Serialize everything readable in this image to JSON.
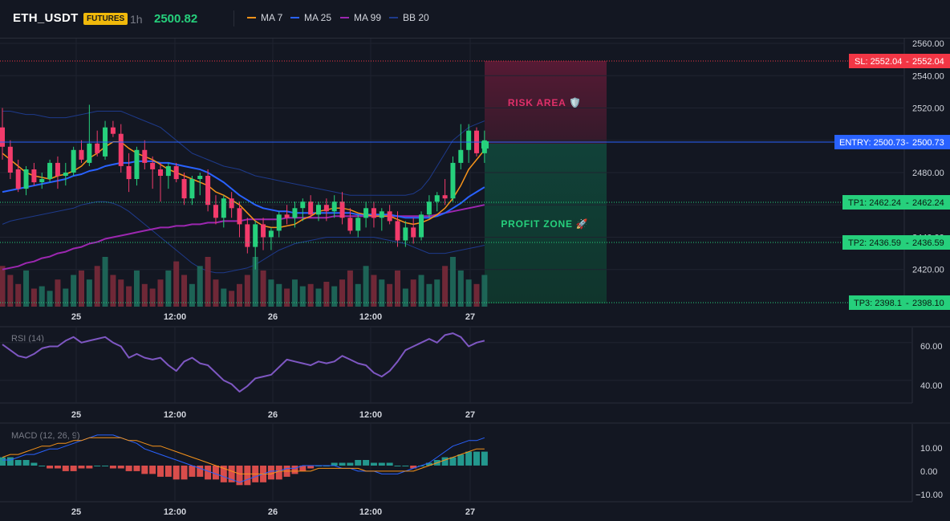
{
  "header": {
    "symbol": "ETH_USDT",
    "badge": "FUTURES",
    "timeframe": "1h",
    "price": "2500.82",
    "indicators": [
      {
        "label": "MA 7",
        "color": "#f7931a"
      },
      {
        "label": "MA 25",
        "color": "#2962ff"
      },
      {
        "label": "MA 99",
        "color": "#9c27b0"
      },
      {
        "label": "BB 20",
        "color": "#1e3a8a"
      }
    ]
  },
  "zones": {
    "risk_label": "RISK AREA 🛡️",
    "profit_label": "PROFIT ZONE 🚀"
  },
  "levels": {
    "sl": {
      "label": "SL: 2552.04",
      "value": "2552.04"
    },
    "entry": {
      "label": "ENTRY: 2500.73",
      "value": "2500.73"
    },
    "tp1": {
      "label": "TP1: 2462.24",
      "value": "2462.24"
    },
    "tp2": {
      "label": "TP2: 2436.59",
      "value": "2436.59"
    },
    "tp3": {
      "label": "TP3: 2398.1",
      "value": "2398.10"
    }
  },
  "price_axis": [
    "2560.00",
    "2540.00",
    "2520.00",
    "2500.00",
    "2480.00",
    "2440.00",
    "2420.00"
  ],
  "time_axis": [
    "25",
    "12:00",
    "26",
    "12:00",
    "27"
  ],
  "rsi": {
    "label": "RSI (14)",
    "axis": [
      "60.00",
      "40.00"
    ]
  },
  "macd": {
    "label": "MACD (12, 26, 9)",
    "axis": [
      "10.00",
      "0.00",
      "−10.00"
    ]
  },
  "chart_data": {
    "type": "candlestick",
    "symbol": "ETH_USDT",
    "interval": "1h",
    "price_ylim": [
      2397,
      2563
    ],
    "rsi_ylim": [
      28,
      68
    ],
    "macd_ylim": [
      -13,
      15
    ],
    "x_ticks": [
      "25",
      "12:00",
      "26",
      "12:00",
      "27"
    ],
    "candles": [
      [
        2508,
        2520,
        2488,
        2496
      ],
      [
        2496,
        2500,
        2476,
        2480
      ],
      [
        2482,
        2488,
        2468,
        2470
      ],
      [
        2470,
        2484,
        2466,
        2482
      ],
      [
        2482,
        2486,
        2472,
        2474
      ],
      [
        2474,
        2480,
        2470,
        2476
      ],
      [
        2476,
        2488,
        2474,
        2486
      ],
      [
        2486,
        2490,
        2470,
        2478
      ],
      [
        2478,
        2486,
        2472,
        2480
      ],
      [
        2480,
        2496,
        2478,
        2494
      ],
      [
        2494,
        2500,
        2486,
        2488
      ],
      [
        2486,
        2522,
        2484,
        2498
      ],
      [
        2498,
        2506,
        2490,
        2492
      ],
      [
        2490,
        2512,
        2488,
        2508
      ],
      [
        2508,
        2512,
        2502,
        2504
      ],
      [
        2504,
        2510,
        2480,
        2484
      ],
      [
        2484,
        2492,
        2468,
        2476
      ],
      [
        2476,
        2496,
        2472,
        2494
      ],
      [
        2494,
        2500,
        2482,
        2486
      ],
      [
        2486,
        2490,
        2470,
        2482
      ],
      [
        2482,
        2486,
        2462,
        2478
      ],
      [
        2478,
        2486,
        2470,
        2484
      ],
      [
        2484,
        2486,
        2474,
        2476
      ],
      [
        2476,
        2480,
        2460,
        2464
      ],
      [
        2464,
        2478,
        2460,
        2476
      ],
      [
        2476,
        2480,
        2466,
        2478
      ],
      [
        2478,
        2482,
        2456,
        2460
      ],
      [
        2460,
        2466,
        2448,
        2452
      ],
      [
        2452,
        2466,
        2446,
        2464
      ],
      [
        2464,
        2468,
        2452,
        2458
      ],
      [
        2458,
        2462,
        2440,
        2448
      ],
      [
        2448,
        2452,
        2430,
        2434
      ],
      [
        2434,
        2450,
        2420,
        2448
      ],
      [
        2448,
        2452,
        2432,
        2440
      ],
      [
        2440,
        2446,
        2432,
        2444
      ],
      [
        2444,
        2456,
        2440,
        2454
      ],
      [
        2454,
        2460,
        2448,
        2452
      ],
      [
        2452,
        2462,
        2446,
        2458
      ],
      [
        2458,
        2464,
        2450,
        2462
      ],
      [
        2462,
        2466,
        2452,
        2454
      ],
      [
        2454,
        2462,
        2450,
        2460
      ],
      [
        2460,
        2464,
        2450,
        2456
      ],
      [
        2456,
        2466,
        2452,
        2462
      ],
      [
        2462,
        2468,
        2448,
        2452
      ],
      [
        2452,
        2458,
        2442,
        2444
      ],
      [
        2444,
        2454,
        2440,
        2452
      ],
      [
        2452,
        2462,
        2446,
        2458
      ],
      [
        2458,
        2462,
        2446,
        2452
      ],
      [
        2452,
        2458,
        2444,
        2456
      ],
      [
        2456,
        2460,
        2448,
        2450
      ],
      [
        2450,
        2456,
        2434,
        2438
      ],
      [
        2438,
        2450,
        2434,
        2446
      ],
      [
        2446,
        2452,
        2436,
        2440
      ],
      [
        2440,
        2456,
        2438,
        2454
      ],
      [
        2454,
        2466,
        2452,
        2462
      ],
      [
        2462,
        2468,
        2456,
        2466
      ],
      [
        2466,
        2476,
        2460,
        2464
      ],
      [
        2464,
        2490,
        2462,
        2486
      ],
      [
        2486,
        2510,
        2482,
        2494
      ],
      [
        2494,
        2510,
        2486,
        2506
      ],
      [
        2506,
        2508,
        2490,
        2492
      ],
      [
        2492,
        2506,
        2486,
        2500
      ]
    ],
    "volume": [
      18,
      14,
      10,
      16,
      8,
      9,
      7,
      12,
      8,
      14,
      16,
      12,
      18,
      22,
      14,
      12,
      9,
      16,
      10,
      8,
      12,
      16,
      20,
      14,
      10,
      18,
      22,
      12,
      8,
      7,
      10,
      14,
      22,
      16,
      12,
      10,
      8,
      12,
      9,
      10,
      8,
      11,
      9,
      12,
      16,
      10,
      18,
      14,
      12,
      10,
      16,
      8,
      12,
      14,
      10,
      12,
      18,
      22,
      16,
      12,
      10,
      14
    ],
    "ma7": [
      2492,
      2488,
      2484,
      2480,
      2478,
      2477,
      2476,
      2478,
      2479,
      2481,
      2484,
      2489,
      2492,
      2496,
      2499,
      2499,
      2495,
      2492,
      2490,
      2488,
      2485,
      2482,
      2480,
      2478,
      2476,
      2474,
      2472,
      2468,
      2466,
      2463,
      2460,
      2455,
      2450,
      2447,
      2446,
      2446,
      2447,
      2448,
      2451,
      2453,
      2456,
      2457,
      2458,
      2458,
      2457,
      2455,
      2454,
      2453,
      2453,
      2453,
      2451,
      2449,
      2448,
      2449,
      2451,
      2454,
      2458,
      2464,
      2472,
      2482,
      2488,
      2494
    ],
    "ma25": [
      2468,
      2469,
      2470,
      2471,
      2472,
      2473,
      2474,
      2475,
      2476,
      2478,
      2479,
      2481,
      2482,
      2484,
      2485,
      2486,
      2486,
      2487,
      2487,
      2487,
      2486,
      2486,
      2485,
      2484,
      2483,
      2482,
      2480,
      2477,
      2474,
      2470,
      2466,
      2463,
      2460,
      2458,
      2457,
      2456,
      2456,
      2455,
      2455,
      2455,
      2455,
      2455,
      2455,
      2455,
      2455,
      2454,
      2454,
      2454,
      2454,
      2454,
      2453,
      2452,
      2452,
      2452,
      2452,
      2453,
      2455,
      2458,
      2461,
      2465,
      2468,
      2471
    ],
    "ma99": [
      2420,
      2421,
      2422,
      2424,
      2425,
      2427,
      2428,
      2430,
      2431,
      2433,
      2434,
      2436,
      2437,
      2439,
      2440,
      2441,
      2442,
      2443,
      2444,
      2445,
      2446,
      2446,
      2447,
      2447,
      2448,
      2448,
      2449,
      2449,
      2450,
      2450,
      2450,
      2451,
      2451,
      2451,
      2451,
      2451,
      2452,
      2452,
      2452,
      2452,
      2452,
      2452,
      2453,
      2453,
      2453,
      2453,
      2453,
      2453,
      2453,
      2453,
      2453,
      2453,
      2453,
      2453,
      2453,
      2454,
      2455,
      2456,
      2457,
      2458,
      2459,
      2460
    ],
    "bb_upper": [
      2518,
      2518,
      2517,
      2516,
      2516,
      2515,
      2514,
      2514,
      2514,
      2515,
      2516,
      2517,
      2518,
      2518,
      2518,
      2518,
      2516,
      2514,
      2512,
      2510,
      2508,
      2504,
      2500,
      2496,
      2492,
      2490,
      2488,
      2486,
      2484,
      2483,
      2482,
      2480,
      2478,
      2477,
      2476,
      2475,
      2474,
      2473,
      2472,
      2471,
      2470,
      2469,
      2468,
      2467,
      2466,
      2466,
      2466,
      2466,
      2466,
      2466,
      2466,
      2466,
      2467,
      2470,
      2476,
      2484,
      2492,
      2500,
      2504,
      2508,
      2510,
      2512
    ],
    "bb_lower": [
      2448,
      2450,
      2451,
      2452,
      2453,
      2454,
      2455,
      2456,
      2457,
      2458,
      2460,
      2461,
      2462,
      2462,
      2461,
      2459,
      2456,
      2452,
      2448,
      2444,
      2440,
      2436,
      2432,
      2428,
      2424,
      2421,
      2419,
      2418,
      2418,
      2419,
      2420,
      2421,
      2423,
      2426,
      2429,
      2432,
      2434,
      2436,
      2437,
      2438,
      2439,
      2440,
      2440,
      2440,
      2440,
      2440,
      2440,
      2440,
      2439,
      2438,
      2437,
      2436,
      2434,
      2432,
      2430,
      2430,
      2430,
      2431,
      2432,
      2433,
      2434,
      2435
    ],
    "rsi": [
      59,
      56,
      53,
      52,
      54,
      57,
      58,
      58,
      61,
      63,
      60,
      61,
      62,
      63,
      60,
      58,
      52,
      54,
      52,
      51,
      52,
      48,
      45,
      50,
      52,
      49,
      48,
      44,
      40,
      38,
      34,
      37,
      41,
      42,
      43,
      47,
      51,
      50,
      49,
      48,
      50,
      49,
      50,
      53,
      51,
      49,
      48,
      44,
      42,
      45,
      50,
      56,
      58,
      60,
      62,
      60,
      64,
      65,
      63,
      58,
      60,
      61
    ],
    "macd_hist": [
      3,
      3,
      2,
      2,
      1,
      0,
      -1,
      -1,
      -2,
      -2,
      -1,
      -1,
      0,
      0,
      -1,
      -1,
      -2,
      -2,
      -3,
      -3,
      -4,
      -4,
      -5,
      -5,
      -4,
      -4,
      -5,
      -5,
      -6,
      -6,
      -7,
      -7,
      -6,
      -6,
      -5,
      -5,
      -4,
      -3,
      -2,
      -1,
      0,
      0,
      1,
      1,
      1,
      2,
      2,
      1,
      1,
      1,
      0,
      0,
      -1,
      0,
      1,
      2,
      3,
      3,
      4,
      5,
      5,
      5
    ],
    "macd_line": [
      2,
      2,
      3,
      4,
      4,
      5,
      6,
      6,
      7,
      8,
      9,
      10,
      11,
      11,
      11,
      10,
      9,
      8,
      6,
      5,
      4,
      3,
      2,
      1,
      0,
      -1,
      -2,
      -3,
      -4,
      -5,
      -6,
      -5,
      -4,
      -3,
      -2,
      -2,
      -1,
      -1,
      0,
      0,
      0,
      0,
      0,
      -1,
      -1,
      -2,
      -2,
      -2,
      -3,
      -3,
      -3,
      -2,
      -1,
      0,
      1,
      3,
      5,
      7,
      8,
      9,
      9,
      10
    ],
    "signal_line": [
      3,
      4,
      4,
      5,
      6,
      7,
      7,
      8,
      8,
      9,
      9,
      10,
      10,
      10,
      10,
      10,
      9,
      9,
      8,
      7,
      7,
      6,
      5,
      4,
      3,
      2,
      1,
      0,
      -1,
      -2,
      -3,
      -3,
      -3,
      -3,
      -3,
      -2,
      -2,
      -2,
      -2,
      -2,
      -1,
      -1,
      -1,
      -1,
      -1,
      -1,
      -2,
      -2,
      -2,
      -2,
      -2,
      -2,
      -2,
      -1,
      0,
      1,
      2,
      3,
      4,
      5,
      6,
      6
    ]
  }
}
